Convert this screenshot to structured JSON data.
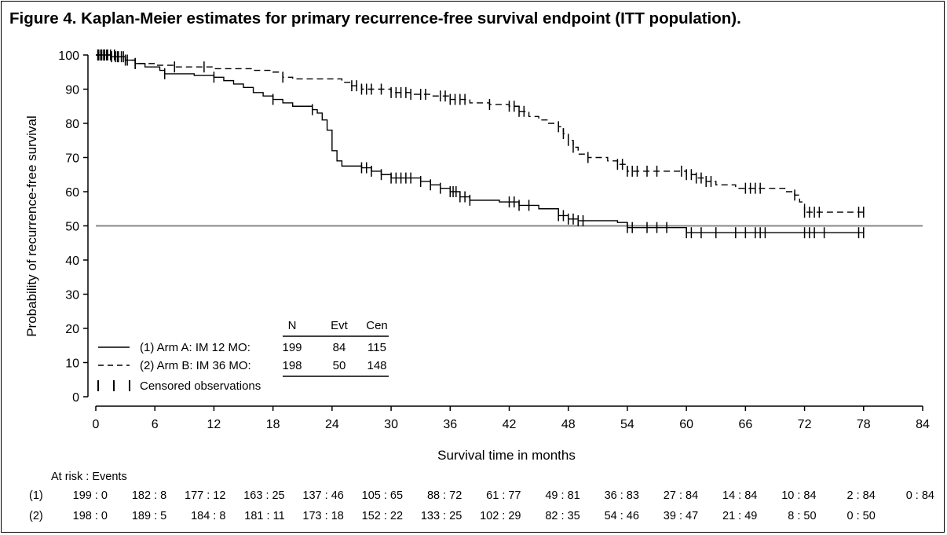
{
  "title": "Figure 4. Kaplan-Meier estimates for primary recurrence-free survival endpoint (ITT population).",
  "chart_data": {
    "type": "line",
    "xlabel": "Survival time in months",
    "ylabel": "Probability of recurrence-free survival",
    "xlim": [
      0,
      84
    ],
    "ylim": [
      0,
      100
    ],
    "xticks": [
      0,
      6,
      12,
      18,
      24,
      30,
      36,
      42,
      48,
      54,
      60,
      66,
      72,
      78,
      84
    ],
    "yticks": [
      0,
      10,
      20,
      30,
      40,
      50,
      60,
      70,
      80,
      90,
      100
    ],
    "reference_line": 50,
    "grid": false,
    "series": [
      {
        "name": "(1) Arm A: IM 12 MO:",
        "style": "solid",
        "steps": [
          [
            0,
            100
          ],
          [
            1.5,
            99.5
          ],
          [
            3,
            98.5
          ],
          [
            4,
            97.5
          ],
          [
            5,
            96.5
          ],
          [
            6.5,
            95.5
          ],
          [
            7,
            94.5
          ],
          [
            9,
            94.5
          ],
          [
            10,
            94
          ],
          [
            12,
            93.5
          ],
          [
            13,
            92.5
          ],
          [
            14,
            91.5
          ],
          [
            15,
            90.5
          ],
          [
            16,
            89
          ],
          [
            17,
            88
          ],
          [
            18,
            87
          ],
          [
            19,
            86
          ],
          [
            20,
            85
          ],
          [
            22,
            84
          ],
          [
            22.5,
            83
          ],
          [
            23,
            81
          ],
          [
            23.5,
            78
          ],
          [
            24,
            72
          ],
          [
            24.5,
            69
          ],
          [
            25,
            67.5
          ],
          [
            27,
            67
          ],
          [
            28,
            66
          ],
          [
            29,
            65
          ],
          [
            30,
            64
          ],
          [
            33,
            63
          ],
          [
            34,
            62
          ],
          [
            35,
            61
          ],
          [
            36,
            60
          ],
          [
            37,
            58.5
          ],
          [
            38,
            57.5
          ],
          [
            41,
            57
          ],
          [
            43,
            56
          ],
          [
            45,
            55
          ],
          [
            47,
            53
          ],
          [
            48,
            52
          ],
          [
            49,
            51.5
          ],
          [
            53,
            51
          ],
          [
            54,
            49.5
          ],
          [
            60,
            48
          ]
        ],
        "end_x": 78,
        "censored": [
          0.3,
          0.6,
          0.9,
          1.2,
          1.6,
          2.0,
          2.3,
          2.8,
          3.2,
          4.0,
          7.0,
          12.0,
          18.0,
          22.0,
          27.0,
          27.5,
          28.0,
          29.0,
          30.0,
          30.5,
          31.0,
          31.5,
          32.0,
          33.0,
          34.0,
          35.0,
          36.0,
          36.3,
          36.6,
          37.0,
          37.5,
          38.0,
          42.0,
          42.5,
          43.0,
          44.0,
          47.0,
          47.5,
          48.0,
          48.5,
          49.0,
          49.5,
          54.0,
          54.5,
          56.0,
          57.0,
          58.0,
          60.0,
          60.5,
          61.5,
          63.0,
          65.0,
          66.0,
          67.0,
          67.5,
          68.0,
          72.0,
          72.5,
          73.0,
          74.0,
          77.5,
          78.0
        ]
      },
      {
        "name": "(2) Arm B: IM 36 MO:",
        "style": "dashed",
        "steps": [
          [
            0,
            100
          ],
          [
            2,
            99.5
          ],
          [
            3,
            98.5
          ],
          [
            4,
            97.5
          ],
          [
            6,
            97
          ],
          [
            8,
            96.5
          ],
          [
            12,
            96
          ],
          [
            16,
            95.5
          ],
          [
            18,
            95
          ],
          [
            19,
            93.5
          ],
          [
            20,
            93
          ],
          [
            25,
            92
          ],
          [
            26,
            91
          ],
          [
            27,
            90
          ],
          [
            30,
            89
          ],
          [
            32,
            88.5
          ],
          [
            34,
            88
          ],
          [
            36,
            87
          ],
          [
            38,
            86
          ],
          [
            40,
            85.5
          ],
          [
            42,
            85
          ],
          [
            43,
            83.5
          ],
          [
            44,
            82
          ],
          [
            45,
            81
          ],
          [
            46,
            80
          ],
          [
            47,
            79
          ],
          [
            47.5,
            77
          ],
          [
            48,
            75
          ],
          [
            48.5,
            73
          ],
          [
            49,
            71
          ],
          [
            50,
            70
          ],
          [
            52,
            69
          ],
          [
            53,
            68
          ],
          [
            54,
            66
          ],
          [
            60,
            65
          ],
          [
            61,
            64
          ],
          [
            62,
            63
          ],
          [
            63,
            62
          ],
          [
            65,
            61
          ],
          [
            70,
            60
          ],
          [
            71,
            59
          ],
          [
            71.5,
            57
          ],
          [
            72,
            54
          ]
        ],
        "end_x": 78,
        "censored": [
          0.2,
          0.5,
          0.8,
          1.1,
          1.5,
          1.9,
          2.2,
          2.6,
          3.0,
          4.0,
          8.0,
          11.0,
          19.0,
          26.0,
          26.5,
          27.0,
          27.5,
          28.0,
          29.0,
          30.0,
          30.5,
          31.0,
          31.5,
          32.0,
          33.0,
          33.5,
          35.0,
          35.5,
          36.0,
          36.5,
          37.0,
          37.5,
          40.0,
          42.0,
          42.5,
          43.0,
          43.5,
          47.0,
          47.5,
          48.0,
          48.5,
          50.0,
          53.0,
          53.5,
          54.0,
          54.5,
          55.0,
          56.0,
          57.0,
          59.5,
          60.0,
          60.5,
          61.0,
          61.5,
          62.0,
          62.5,
          66.0,
          66.5,
          67.0,
          67.5,
          71.0,
          72.0,
          72.5,
          73.0,
          73.5,
          77.5,
          78.0
        ]
      }
    ],
    "legend": {
      "placement": "lower-left",
      "headers": [
        "N",
        "Evt",
        "Cen"
      ],
      "rows": [
        {
          "label": "(1) Arm A: IM 12 MO:",
          "n": "199",
          "evt": "84",
          "cen": "115"
        },
        {
          "label": "(2) Arm B: IM 36 MO:",
          "n": "198",
          "evt": "50",
          "cen": "148"
        }
      ],
      "censored_label": "Censored observations"
    },
    "at_risk": {
      "header": "At risk : Events",
      "rows": [
        {
          "label": "(1)",
          "values": [
            "199 : 0",
            "182 : 8",
            "177 : 12",
            "163 : 25",
            "137 : 46",
            "105 : 65",
            "88 : 72",
            "61 : 77",
            "49 : 81",
            "36 : 83",
            "27 : 84",
            "14 : 84",
            "10 : 84",
            "2 : 84",
            "0 : 84"
          ]
        },
        {
          "label": "(2)",
          "values": [
            "198 : 0",
            "189 : 5",
            "184 : 8",
            "181 : 11",
            "173 : 18",
            "152 : 22",
            "133 : 25",
            "102 : 29",
            "82 : 35",
            "54 : 46",
            "39 : 47",
            "21 : 49",
            "8 : 50",
            "0 : 50"
          ]
        }
      ]
    }
  }
}
